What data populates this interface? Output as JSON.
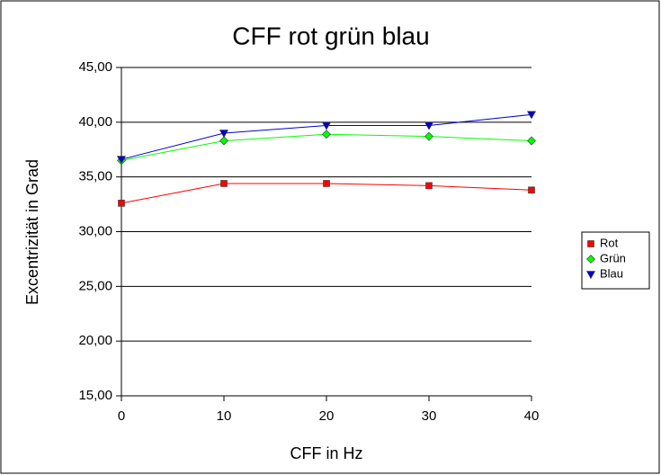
{
  "chart_data": {
    "type": "line",
    "title": "CFF rot grün blau",
    "x_label": "CFF in Hz",
    "y_label": "Excentrizität in Grad",
    "x": [
      0,
      10,
      20,
      30,
      40
    ],
    "series": [
      {
        "name": "Rot",
        "color": "#ff0000",
        "marker": "square",
        "values": [
          32.6,
          34.4,
          34.4,
          34.2,
          33.8
        ]
      },
      {
        "name": "Grün",
        "color": "#00ff00",
        "marker": "diamond",
        "values": [
          36.5,
          38.3,
          38.9,
          38.7,
          38.3
        ]
      },
      {
        "name": "Blau",
        "color": "#0000cc",
        "marker": "triangle-down",
        "values": [
          36.6,
          39.0,
          39.7,
          39.7,
          40.7
        ]
      }
    ],
    "xlim": [
      0,
      40
    ],
    "xticks": [
      0,
      10,
      20,
      30,
      40
    ],
    "ylim": [
      15,
      45
    ],
    "yticks": [
      {
        "value": 15,
        "label": "15,00"
      },
      {
        "value": 20,
        "label": "20,00"
      },
      {
        "value": 25,
        "label": "25,00"
      },
      {
        "value": 30,
        "label": "30,00"
      },
      {
        "value": 35,
        "label": "35,00"
      },
      {
        "value": 40,
        "label": "40,00"
      },
      {
        "value": 45,
        "label": "45,00"
      }
    ],
    "grid": true,
    "legend": "right"
  }
}
